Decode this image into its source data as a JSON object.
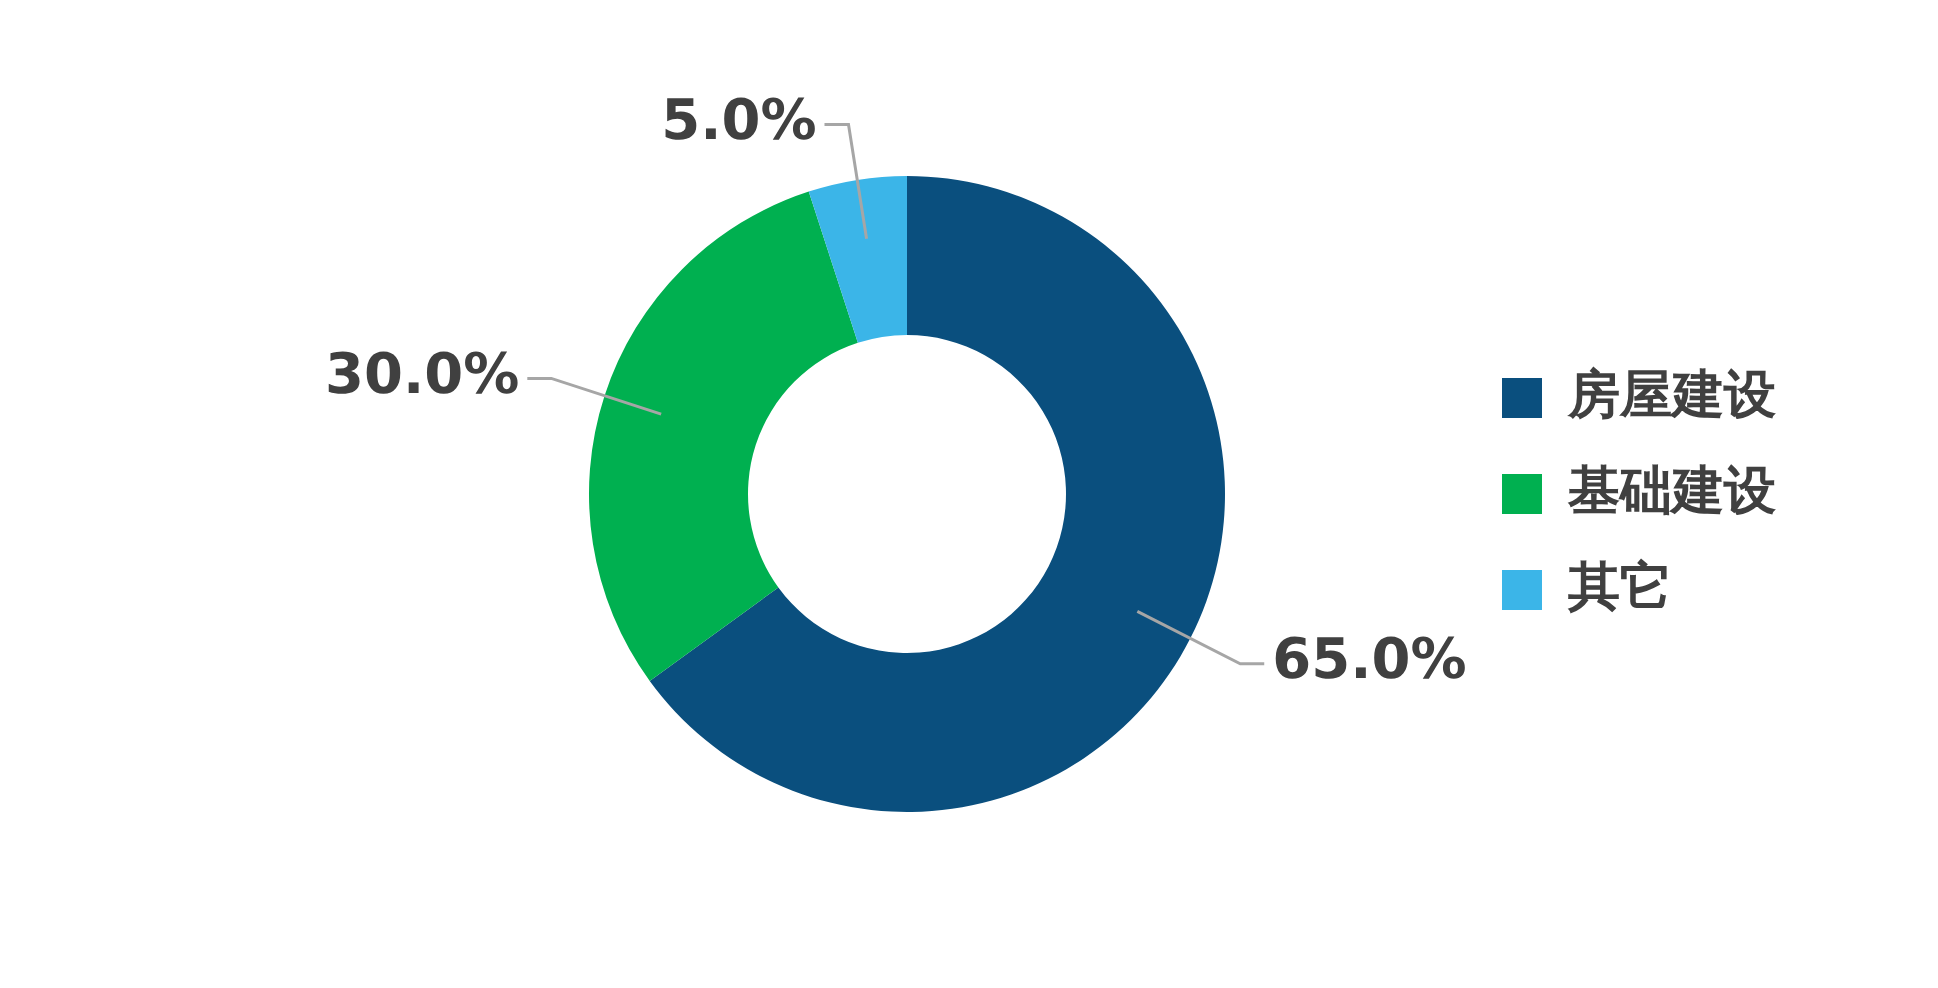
{
  "chart_data": {
    "type": "donut",
    "categories": [
      "房屋建设",
      "基础建设",
      "其它"
    ],
    "values": [
      65,
      30,
      5
    ],
    "colors": [
      "#0a4f7e",
      "#00b050",
      "#3bb5e8"
    ],
    "value_labels": [
      "65.0%",
      "30.0%",
      "5.0%"
    ],
    "legend": "right"
  }
}
